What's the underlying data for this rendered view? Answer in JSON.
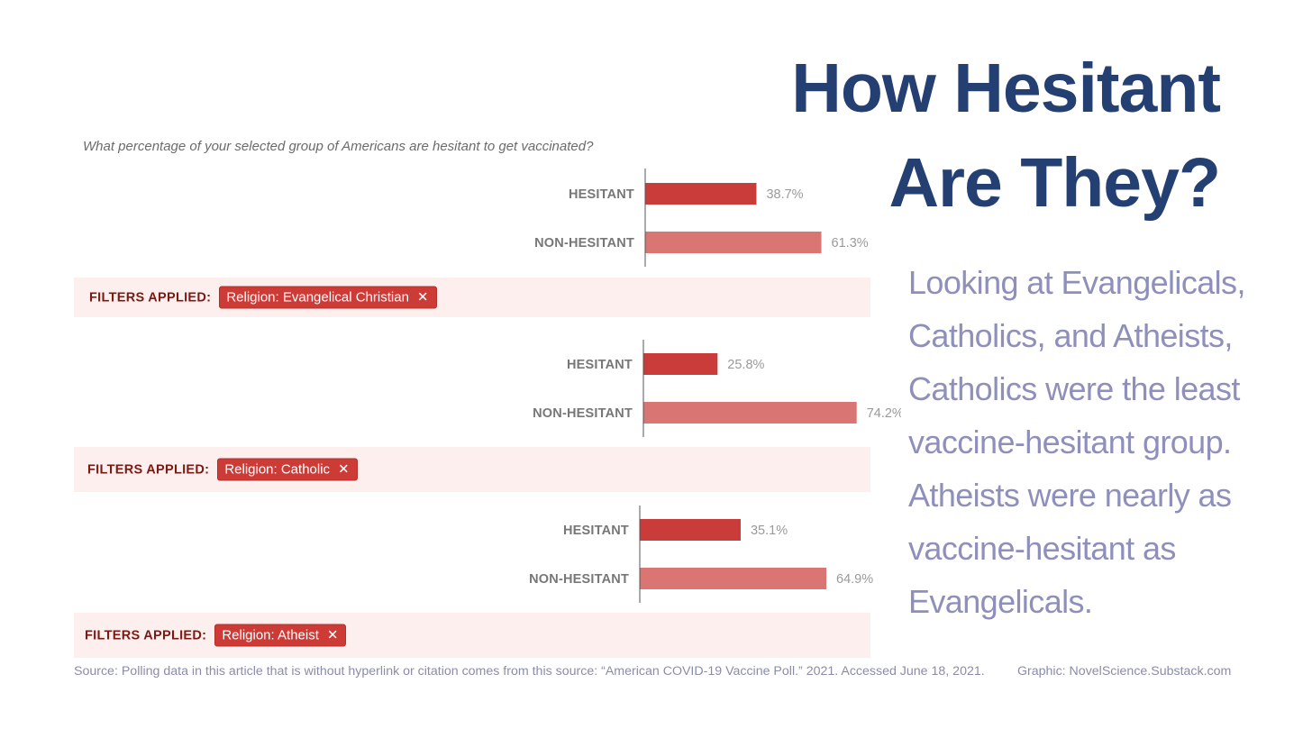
{
  "title": {
    "line1": "How Hesitant",
    "line2": "Are They?"
  },
  "description": "Looking at Evangelicals, Catholics, and Atheists, Catholics were the least vaccine-hesitant group. Atheists were nearly as vaccine-hesitant as Evangelicals.",
  "question": "What percentage of your selected group of Americans are hesitant to get vaccinated?",
  "filters_label": "FILTERS APPLIED:",
  "colors": {
    "hesitant": "#c93c3a",
    "non_hesitant": "#d97573",
    "title": "#243f71",
    "description": "#8e90bb",
    "filter_bg": "#fcefed"
  },
  "chart_data": [
    {
      "type": "bar",
      "orientation": "horizontal",
      "categories": [
        "HESITANT",
        "NON-HESITANT"
      ],
      "values": [
        38.7,
        61.3
      ],
      "value_labels": [
        "38.7%",
        "61.3%"
      ],
      "filter": "Religion: Evangelical Christian",
      "filter_icon": "close-icon"
    },
    {
      "type": "bar",
      "orientation": "horizontal",
      "categories": [
        "HESITANT",
        "NON-HESITANT"
      ],
      "values": [
        25.8,
        74.2
      ],
      "value_labels": [
        "25.8%",
        "74.2%"
      ],
      "filter": "Religion: Catholic",
      "filter_icon": "close-icon"
    },
    {
      "type": "bar",
      "orientation": "horizontal",
      "categories": [
        "HESITANT",
        "NON-HESITANT"
      ],
      "values": [
        35.1,
        64.9
      ],
      "value_labels": [
        "35.1%",
        "64.9%"
      ],
      "filter": "Religion: Atheist",
      "filter_icon": "close-icon"
    }
  ],
  "source": "Source: Polling data in this article that is without hyperlink or citation comes from this source: “American COVID-19 Vaccine Poll.” 2021. Accessed June 18, 2021.",
  "credit": "Graphic: NovelScience.Substack.com"
}
